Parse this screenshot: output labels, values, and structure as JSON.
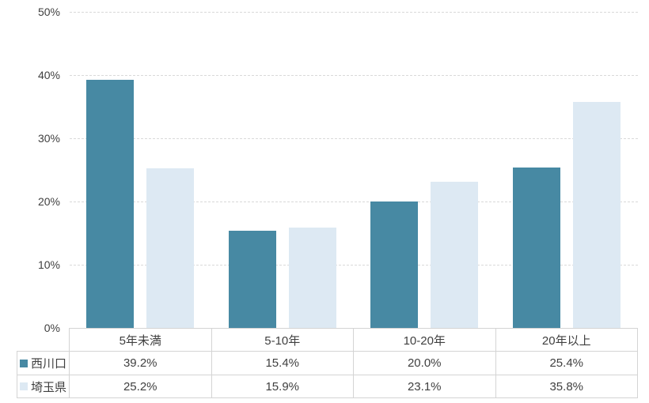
{
  "chart_data": {
    "type": "bar",
    "title": "",
    "xlabel": "",
    "ylabel": "",
    "categories": [
      "5年未満",
      "5-10年",
      "10-20年",
      "20年以上"
    ],
    "series": [
      {
        "name": "西川口",
        "color": "#4789a3",
        "values": [
          39.2,
          15.4,
          20.0,
          25.4
        ],
        "display_values": [
          "39.2%",
          "15.4%",
          "20.0%",
          "25.4%"
        ]
      },
      {
        "name": "埼玉県",
        "color": "#dde9f3",
        "values": [
          25.2,
          15.9,
          23.1,
          35.8
        ],
        "display_values": [
          "25.2%",
          "15.9%",
          "23.1%",
          "35.8%"
        ]
      }
    ],
    "ylim": [
      0,
      50
    ],
    "ytick_values": [
      0,
      10,
      20,
      30,
      40,
      50
    ],
    "ytick_labels": [
      "0%",
      "10%",
      "20%",
      "30%",
      "40%",
      "50%"
    ],
    "grid": "horizontal-dashed",
    "legend_position": "data-table-left-column",
    "colors": {
      "series_1": "#4789a3",
      "series_2": "#dde9f3",
      "gridline": "#d9d9d9",
      "table_border": "#d4d4d4",
      "text": "#3f3f3f",
      "background": "#ffffff"
    }
  }
}
